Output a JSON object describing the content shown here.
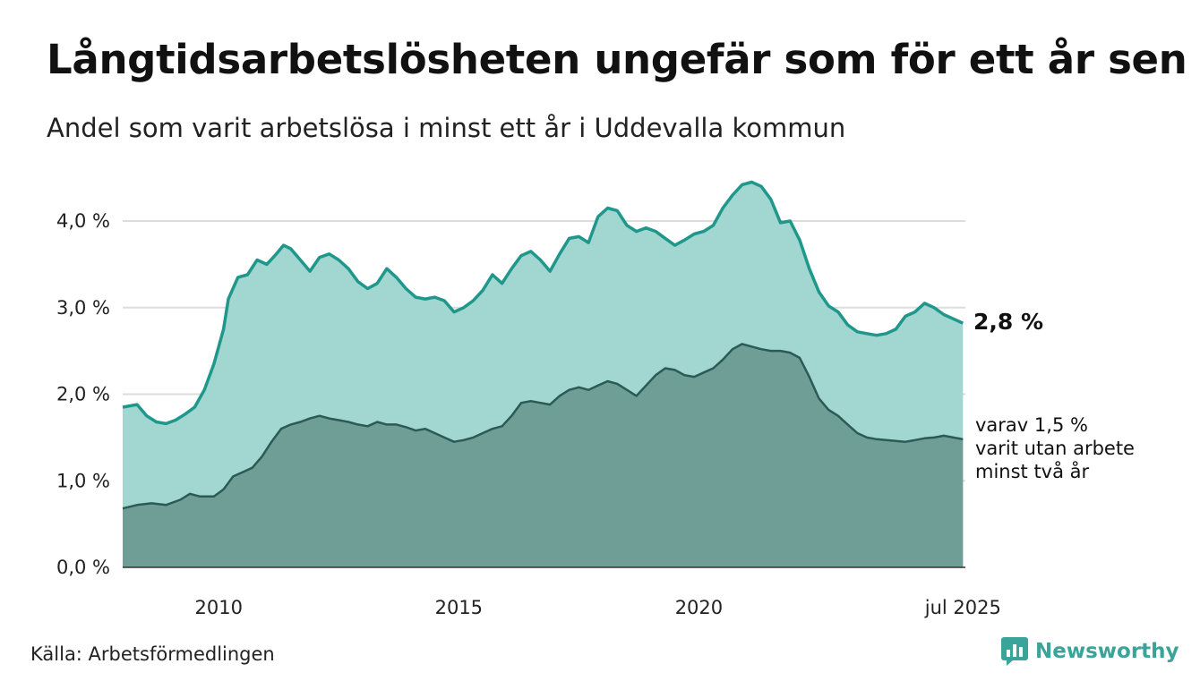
{
  "title": "Långtidsarbetslösheten ungefär som för ett år sen",
  "subtitle": "Andel som varit arbetslösa i minst ett år i Uddevalla kommun",
  "source": "Källa: Arbetsförmedlingen",
  "brand": {
    "name": "Newsworthy",
    "icon": "newsworthy-chart-bubble-icon"
  },
  "colors": {
    "total_line": "#1f978b",
    "total_fill": "#a2d6d0",
    "long_line": "#2c5a55",
    "long_fill": "#6f9e97",
    "grid": "#dddddd"
  },
  "chart_data": {
    "type": "area",
    "x_unit": "year",
    "xlim": [
      2008.0,
      2025.55
    ],
    "ylim": [
      0,
      4.4
    ],
    "yticks": [
      {
        "value": 0,
        "label": "0,0 %"
      },
      {
        "value": 1,
        "label": "1,0 %"
      },
      {
        "value": 2,
        "label": "2,0 %"
      },
      {
        "value": 3,
        "label": "3,0 %"
      },
      {
        "value": 4,
        "label": "4,0 %"
      }
    ],
    "xticks": [
      {
        "value": 2010,
        "label": "2010"
      },
      {
        "value": 2015,
        "label": "2015"
      },
      {
        "value": 2020,
        "label": "2020"
      },
      {
        "value": 2025.5,
        "label": "jul 2025"
      }
    ],
    "grid": true,
    "series": [
      {
        "key": "total",
        "end_label": "2,8 %",
        "points": [
          [
            2008.0,
            1.85
          ],
          [
            2008.3,
            1.88
          ],
          [
            2008.5,
            1.75
          ],
          [
            2008.7,
            1.68
          ],
          [
            2008.9,
            1.66
          ],
          [
            2009.1,
            1.7
          ],
          [
            2009.3,
            1.77
          ],
          [
            2009.5,
            1.85
          ],
          [
            2009.7,
            2.05
          ],
          [
            2009.9,
            2.35
          ],
          [
            2010.1,
            2.75
          ],
          [
            2010.2,
            3.1
          ],
          [
            2010.4,
            3.35
          ],
          [
            2010.6,
            3.38
          ],
          [
            2010.8,
            3.55
          ],
          [
            2011.0,
            3.5
          ],
          [
            2011.2,
            3.62
          ],
          [
            2011.35,
            3.72
          ],
          [
            2011.5,
            3.68
          ],
          [
            2011.7,
            3.55
          ],
          [
            2011.9,
            3.42
          ],
          [
            2012.1,
            3.58
          ],
          [
            2012.3,
            3.62
          ],
          [
            2012.5,
            3.55
          ],
          [
            2012.7,
            3.45
          ],
          [
            2012.9,
            3.3
          ],
          [
            2013.1,
            3.22
          ],
          [
            2013.3,
            3.28
          ],
          [
            2013.5,
            3.45
          ],
          [
            2013.7,
            3.35
          ],
          [
            2013.9,
            3.22
          ],
          [
            2014.1,
            3.12
          ],
          [
            2014.3,
            3.1
          ],
          [
            2014.5,
            3.12
          ],
          [
            2014.7,
            3.08
          ],
          [
            2014.9,
            2.95
          ],
          [
            2015.1,
            3.0
          ],
          [
            2015.3,
            3.08
          ],
          [
            2015.5,
            3.2
          ],
          [
            2015.7,
            3.38
          ],
          [
            2015.9,
            3.28
          ],
          [
            2016.1,
            3.45
          ],
          [
            2016.3,
            3.6
          ],
          [
            2016.5,
            3.65
          ],
          [
            2016.7,
            3.55
          ],
          [
            2016.9,
            3.42
          ],
          [
            2017.1,
            3.62
          ],
          [
            2017.3,
            3.8
          ],
          [
            2017.5,
            3.82
          ],
          [
            2017.7,
            3.75
          ],
          [
            2017.9,
            4.05
          ],
          [
            2018.1,
            4.15
          ],
          [
            2018.3,
            4.12
          ],
          [
            2018.5,
            3.95
          ],
          [
            2018.7,
            3.88
          ],
          [
            2018.9,
            3.92
          ],
          [
            2019.1,
            3.88
          ],
          [
            2019.3,
            3.8
          ],
          [
            2019.5,
            3.72
          ],
          [
            2019.7,
            3.78
          ],
          [
            2019.9,
            3.85
          ],
          [
            2020.1,
            3.88
          ],
          [
            2020.3,
            3.95
          ],
          [
            2020.5,
            4.15
          ],
          [
            2020.7,
            4.3
          ],
          [
            2020.9,
            4.42
          ],
          [
            2021.1,
            4.45
          ],
          [
            2021.3,
            4.4
          ],
          [
            2021.5,
            4.25
          ],
          [
            2021.7,
            3.98
          ],
          [
            2021.9,
            4.0
          ],
          [
            2022.1,
            3.78
          ],
          [
            2022.3,
            3.45
          ],
          [
            2022.5,
            3.18
          ],
          [
            2022.7,
            3.02
          ],
          [
            2022.9,
            2.95
          ],
          [
            2023.1,
            2.8
          ],
          [
            2023.3,
            2.72
          ],
          [
            2023.5,
            2.7
          ],
          [
            2023.7,
            2.68
          ],
          [
            2023.9,
            2.7
          ],
          [
            2024.1,
            2.75
          ],
          [
            2024.3,
            2.9
          ],
          [
            2024.5,
            2.95
          ],
          [
            2024.7,
            3.05
          ],
          [
            2024.9,
            3.0
          ],
          [
            2025.1,
            2.92
          ],
          [
            2025.3,
            2.87
          ],
          [
            2025.5,
            2.82
          ]
        ]
      },
      {
        "key": "long_term",
        "end_label": "varav 1,5 % varit utan arbete minst två år",
        "points": [
          [
            2008.0,
            0.68
          ],
          [
            2008.3,
            0.72
          ],
          [
            2008.6,
            0.74
          ],
          [
            2008.9,
            0.72
          ],
          [
            2009.2,
            0.78
          ],
          [
            2009.4,
            0.85
          ],
          [
            2009.6,
            0.82
          ],
          [
            2009.9,
            0.82
          ],
          [
            2010.1,
            0.9
          ],
          [
            2010.3,
            1.05
          ],
          [
            2010.5,
            1.1
          ],
          [
            2010.7,
            1.15
          ],
          [
            2010.9,
            1.28
          ],
          [
            2011.1,
            1.45
          ],
          [
            2011.3,
            1.6
          ],
          [
            2011.5,
            1.65
          ],
          [
            2011.7,
            1.68
          ],
          [
            2011.9,
            1.72
          ],
          [
            2012.1,
            1.75
          ],
          [
            2012.3,
            1.72
          ],
          [
            2012.5,
            1.7
          ],
          [
            2012.7,
            1.68
          ],
          [
            2012.9,
            1.65
          ],
          [
            2013.1,
            1.63
          ],
          [
            2013.3,
            1.68
          ],
          [
            2013.5,
            1.65
          ],
          [
            2013.7,
            1.65
          ],
          [
            2013.9,
            1.62
          ],
          [
            2014.1,
            1.58
          ],
          [
            2014.3,
            1.6
          ],
          [
            2014.5,
            1.55
          ],
          [
            2014.7,
            1.5
          ],
          [
            2014.9,
            1.45
          ],
          [
            2015.1,
            1.47
          ],
          [
            2015.3,
            1.5
          ],
          [
            2015.5,
            1.55
          ],
          [
            2015.7,
            1.6
          ],
          [
            2015.9,
            1.63
          ],
          [
            2016.1,
            1.75
          ],
          [
            2016.3,
            1.9
          ],
          [
            2016.5,
            1.92
          ],
          [
            2016.7,
            1.9
          ],
          [
            2016.9,
            1.88
          ],
          [
            2017.1,
            1.98
          ],
          [
            2017.3,
            2.05
          ],
          [
            2017.5,
            2.08
          ],
          [
            2017.7,
            2.05
          ],
          [
            2017.9,
            2.1
          ],
          [
            2018.1,
            2.15
          ],
          [
            2018.3,
            2.12
          ],
          [
            2018.5,
            2.05
          ],
          [
            2018.7,
            1.98
          ],
          [
            2018.9,
            2.1
          ],
          [
            2019.1,
            2.22
          ],
          [
            2019.3,
            2.3
          ],
          [
            2019.5,
            2.28
          ],
          [
            2019.7,
            2.22
          ],
          [
            2019.9,
            2.2
          ],
          [
            2020.1,
            2.25
          ],
          [
            2020.3,
            2.3
          ],
          [
            2020.5,
            2.4
          ],
          [
            2020.7,
            2.52
          ],
          [
            2020.9,
            2.58
          ],
          [
            2021.1,
            2.55
          ],
          [
            2021.3,
            2.52
          ],
          [
            2021.5,
            2.5
          ],
          [
            2021.7,
            2.5
          ],
          [
            2021.9,
            2.48
          ],
          [
            2022.1,
            2.42
          ],
          [
            2022.3,
            2.2
          ],
          [
            2022.5,
            1.95
          ],
          [
            2022.7,
            1.82
          ],
          [
            2022.9,
            1.75
          ],
          [
            2023.1,
            1.65
          ],
          [
            2023.3,
            1.55
          ],
          [
            2023.5,
            1.5
          ],
          [
            2023.7,
            1.48
          ],
          [
            2023.9,
            1.47
          ],
          [
            2024.1,
            1.46
          ],
          [
            2024.3,
            1.45
          ],
          [
            2024.5,
            1.47
          ],
          [
            2024.7,
            1.49
          ],
          [
            2024.9,
            1.5
          ],
          [
            2025.1,
            1.52
          ],
          [
            2025.3,
            1.5
          ],
          [
            2025.5,
            1.48
          ]
        ]
      }
    ]
  }
}
